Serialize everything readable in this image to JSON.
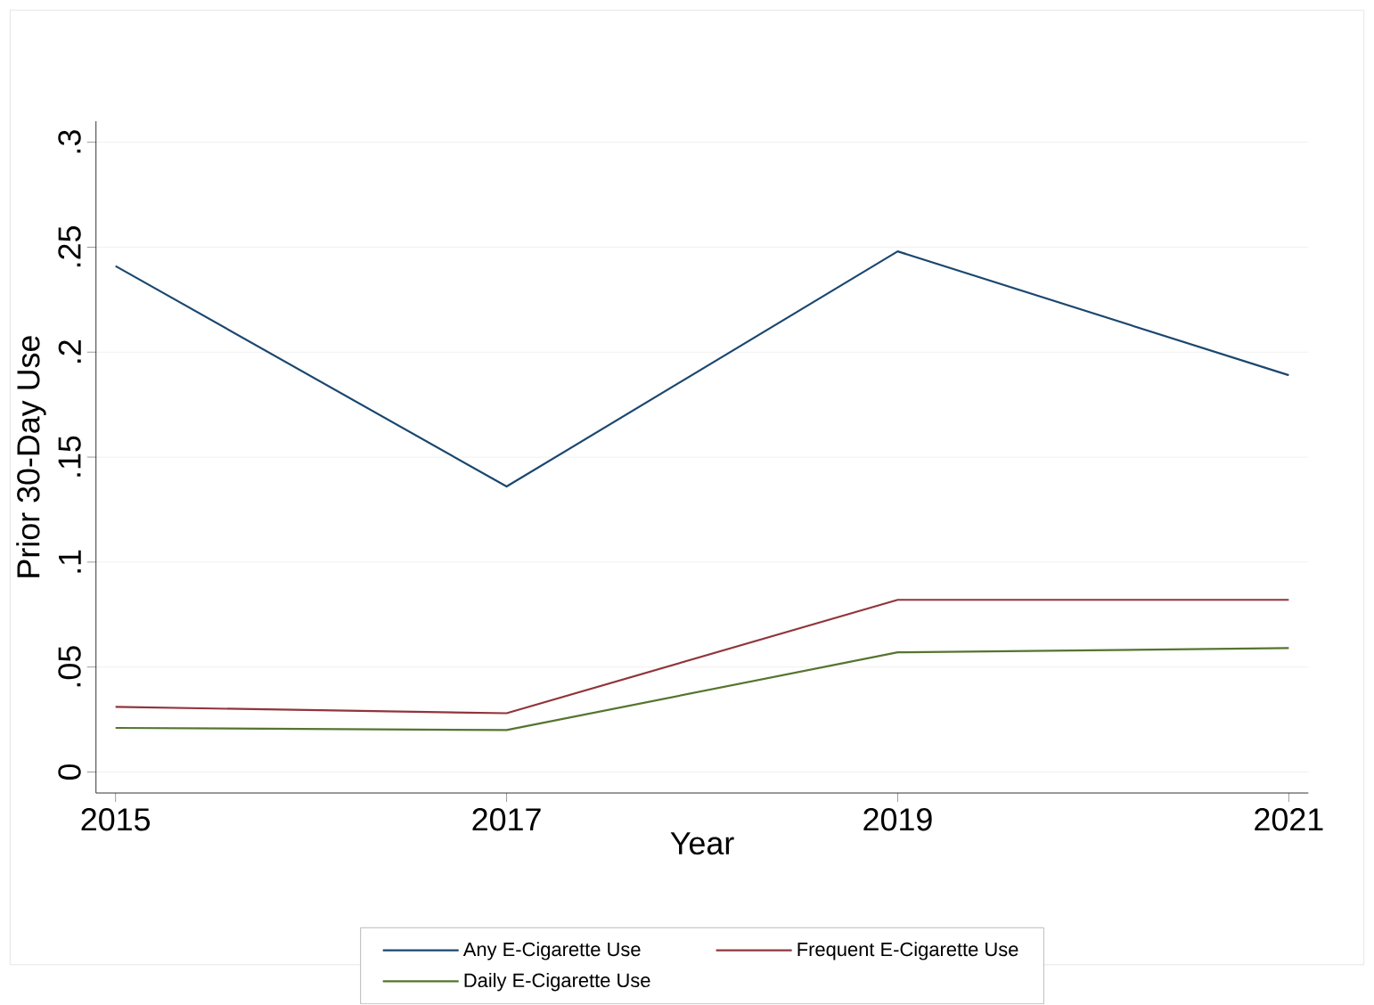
{
  "chart_data": {
    "type": "line",
    "xlabel": "Year",
    "ylabel": "Prior 30-Day Use",
    "x": [
      2015,
      2017,
      2019,
      2021
    ],
    "xlim": [
      2014.9,
      2021.1
    ],
    "xticks": [
      2015,
      2017,
      2019,
      2021
    ],
    "ylim": [
      -0.01,
      0.31
    ],
    "yticks": [
      {
        "value": 0,
        "label": "0"
      },
      {
        "value": 0.05,
        "label": ".05"
      },
      {
        "value": 0.1,
        "label": ".1"
      },
      {
        "value": 0.15,
        "label": ".15"
      },
      {
        "value": 0.2,
        "label": ".2"
      },
      {
        "value": 0.25,
        "label": ".25"
      },
      {
        "value": 0.3,
        "label": ".3"
      }
    ],
    "grid": "y",
    "legend": "bottom",
    "marker": "none",
    "line_style": "solid",
    "series": [
      {
        "name": "Any E-Cigarette Use",
        "color": "#1a476f",
        "values": [
          0.241,
          0.136,
          0.248,
          0.189
        ]
      },
      {
        "name": "Frequent E-Cigarette Use",
        "color": "#90353b",
        "values": [
          0.031,
          0.028,
          0.082,
          0.082
        ]
      },
      {
        "name": "Daily E-Cigarette Use",
        "color": "#55752f",
        "values": [
          0.021,
          0.02,
          0.057,
          0.059
        ]
      }
    ]
  }
}
